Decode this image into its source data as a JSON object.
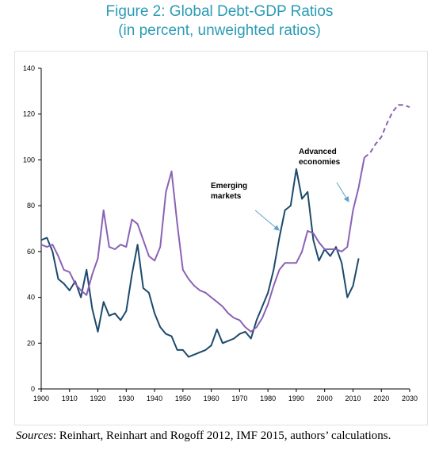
{
  "chart_data": {
    "type": "line",
    "title": "Figure 2: Global Debt-GDP Ratios",
    "subtitle": "(in percent, unweighted ratios)",
    "source_label": "Sources",
    "source": ": Reinhart, Reinhart and Rogoff 2012, IMF 2015, authors’ calculations.",
    "x": [
      1900,
      1902,
      1904,
      1906,
      1908,
      1910,
      1912,
      1914,
      1916,
      1918,
      1920,
      1922,
      1924,
      1926,
      1928,
      1930,
      1932,
      1934,
      1936,
      1938,
      1940,
      1942,
      1944,
      1946,
      1948,
      1950,
      1952,
      1954,
      1956,
      1958,
      1960,
      1962,
      1964,
      1966,
      1968,
      1970,
      1972,
      1974,
      1976,
      1978,
      1980,
      1982,
      1984,
      1986,
      1988,
      1990,
      1992,
      1994,
      1996,
      1998,
      2000,
      2002,
      2004,
      2006,
      2008,
      2010,
      2012,
      2014,
      2016,
      2018,
      2020,
      2022,
      2024,
      2026,
      2028,
      2030
    ],
    "series": [
      {
        "name": "Emerging markets",
        "color": "#1c4a6c",
        "values": [
          65,
          66,
          60,
          48,
          46,
          43,
          47,
          40,
          52,
          35,
          25,
          38,
          32,
          33,
          30,
          34,
          50,
          63,
          44,
          42,
          33,
          27,
          24,
          23,
          17,
          17,
          14,
          15,
          16,
          17,
          19,
          26,
          20,
          21,
          22,
          24,
          25,
          22,
          30,
          36,
          42,
          52,
          66,
          78,
          80,
          96,
          83,
          86,
          65,
          56,
          61,
          58,
          62,
          55,
          40,
          45,
          57,
          null,
          null,
          null,
          null,
          null,
          null,
          null,
          null,
          null
        ]
      },
      {
        "name": "Advanced economies",
        "color": "#8a62b5",
        "values": [
          63,
          62,
          63,
          58,
          52,
          51,
          46,
          43,
          41,
          50,
          57,
          78,
          62,
          61,
          63,
          62,
          74,
          72,
          65,
          58,
          56,
          62,
          86,
          95,
          72,
          52,
          48,
          45,
          43,
          42,
          40,
          38,
          36,
          33,
          31,
          30,
          27,
          25,
          27,
          31,
          37,
          45,
          52,
          55,
          55,
          55,
          60,
          69,
          68,
          64,
          61,
          61,
          61,
          60,
          62,
          78,
          88,
          101,
          null,
          null,
          null,
          null,
          null,
          null,
          null,
          null
        ]
      },
      {
        "color": "#8a62b5",
        "dashed": true,
        "values": [
          null,
          null,
          null,
          null,
          null,
          null,
          null,
          null,
          null,
          null,
          null,
          null,
          null,
          null,
          null,
          null,
          null,
          null,
          null,
          null,
          null,
          null,
          null,
          null,
          null,
          null,
          null,
          null,
          null,
          null,
          null,
          null,
          null,
          null,
          null,
          null,
          null,
          null,
          null,
          null,
          null,
          null,
          null,
          null,
          null,
          null,
          null,
          null,
          null,
          null,
          null,
          null,
          null,
          null,
          null,
          null,
          null,
          101,
          103,
          107,
          110,
          116,
          121,
          124,
          124,
          123
        ]
      }
    ],
    "xlim": [
      1900,
      2030
    ],
    "xticks": [
      1900,
      1910,
      1920,
      1930,
      1940,
      1950,
      1960,
      1970,
      1980,
      1990,
      2000,
      2010,
      2020,
      2030
    ],
    "ylim": [
      0,
      140
    ],
    "yticks": [
      0,
      20,
      40,
      60,
      80,
      100,
      120,
      140
    ],
    "grid": false
  }
}
